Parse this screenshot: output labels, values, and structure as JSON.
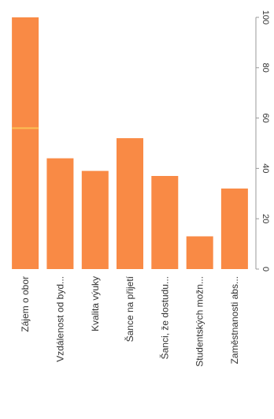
{
  "chart_data": {
    "type": "bar",
    "orientation": "rotated-90",
    "categories": [
      "Zájem o obor",
      "Vzdálenost od byd...",
      "Kvalita výuky",
      "Šance na přijetí",
      "Šanci, že dostudu...",
      "Studentských možn...",
      "Zaměstnanosti abs..."
    ],
    "values": [
      100,
      44,
      39,
      52,
      37,
      13,
      32
    ],
    "ylim": [
      0,
      100
    ],
    "yticks": [
      0,
      20,
      40,
      60,
      80,
      100
    ],
    "title": "",
    "xlabel": "",
    "ylabel": "",
    "grid": false,
    "legend": "none",
    "colors": {
      "bar": "#f98a45",
      "bar_highlight": "#fbbf55",
      "axis": "#999999",
      "text": "#333333"
    }
  }
}
